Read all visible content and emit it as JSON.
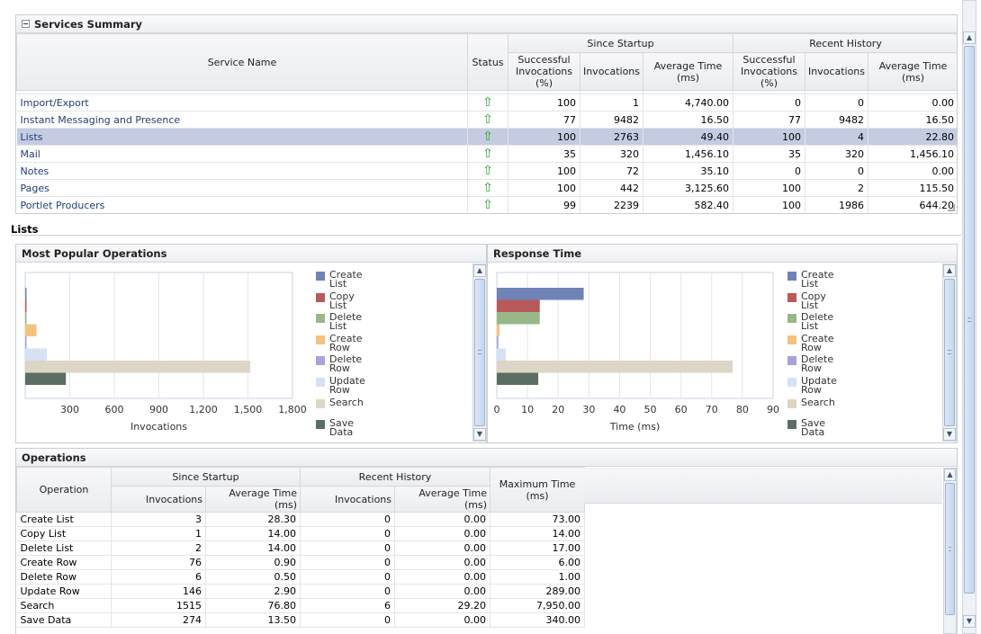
{
  "services": {
    "title": "Services Summary",
    "headers": {
      "service_name": "Service Name",
      "status": "Status",
      "since_startup": "Since Startup",
      "recent_history": "Recent History",
      "successful": "Successful Invocations (%)",
      "invocations": "Invocations",
      "avg_time": "Average Time (ms)"
    },
    "rows": [
      {
        "name": "Import/Export",
        "s_succ": "100",
        "s_inv": "1",
        "s_avg": "4,740.00",
        "r_succ": "0",
        "r_inv": "0",
        "r_avg": "0.00"
      },
      {
        "name": "Instant Messaging and Presence",
        "s_succ": "77",
        "s_inv": "9482",
        "s_avg": "16.50",
        "r_succ": "77",
        "r_inv": "9482",
        "r_avg": "16.50"
      },
      {
        "name": "Lists",
        "s_succ": "100",
        "s_inv": "2763",
        "s_avg": "49.40",
        "r_succ": "100",
        "r_inv": "4",
        "r_avg": "22.80"
      },
      {
        "name": "Mail",
        "s_succ": "35",
        "s_inv": "320",
        "s_avg": "1,456.10",
        "r_succ": "35",
        "r_inv": "320",
        "r_avg": "1,456.10"
      },
      {
        "name": "Notes",
        "s_succ": "100",
        "s_inv": "72",
        "s_avg": "35.10",
        "r_succ": "0",
        "r_inv": "0",
        "r_avg": "0.00"
      },
      {
        "name": "Pages",
        "s_succ": "100",
        "s_inv": "442",
        "s_avg": "3,125.60",
        "r_succ": "100",
        "r_inv": "2",
        "r_avg": "115.50"
      },
      {
        "name": "Portlet Producers",
        "s_succ": "99",
        "s_inv": "2239",
        "s_avg": "582.40",
        "r_succ": "100",
        "r_inv": "1986",
        "r_avg": "644.20"
      }
    ],
    "selected": "Lists",
    "status_icon": "up-arrow-icon",
    "status_color": "#2c9a2c"
  },
  "lists": {
    "title": "Lists",
    "popular": {
      "title": "Most Popular Operations"
    },
    "response": {
      "title": "Response Time"
    }
  },
  "chart_data": [
    {
      "type": "bar",
      "orientation": "horizontal",
      "categories": [
        "Create List",
        "Copy List",
        "Delete List",
        "Create Row",
        "Delete Row",
        "Update Row",
        "Search",
        "Save Data"
      ],
      "values": [
        3,
        1,
        2,
        76,
        6,
        146,
        1515,
        274
      ],
      "colors": [
        "#6f83b6",
        "#b85a5a",
        "#98b88a",
        "#f3c27e",
        "#a9a3d9",
        "#d6e1f4",
        "#ddd5c6",
        "#5c6e64"
      ],
      "xlabel": "Invocations",
      "xticks": [
        "300",
        "600",
        "900",
        "1,200",
        "1,500",
        "1,800"
      ],
      "xlim": [
        0,
        1800
      ],
      "grid": true,
      "legend": "right"
    },
    {
      "type": "bar",
      "orientation": "horizontal",
      "categories": [
        "Create List",
        "Copy List",
        "Delete List",
        "Create Row",
        "Delete Row",
        "Update Row",
        "Search",
        "Save Data"
      ],
      "values": [
        28.3,
        14.0,
        14.0,
        0.9,
        0.5,
        2.9,
        76.8,
        13.5
      ],
      "colors": [
        "#6f83b6",
        "#b85a5a",
        "#98b88a",
        "#f3c27e",
        "#a9a3d9",
        "#d6e1f4",
        "#ddd5c6",
        "#5c6e64"
      ],
      "xlabel": "Time (ms)",
      "xticks": [
        "0",
        "10",
        "20",
        "30",
        "40",
        "50",
        "60",
        "70",
        "80",
        "90"
      ],
      "xlim": [
        0,
        90
      ],
      "grid": true,
      "legend": "right"
    }
  ],
  "legend": [
    [
      "Create",
      "List"
    ],
    [
      "Copy",
      "List"
    ],
    [
      "Delete",
      "List"
    ],
    [
      "Create",
      "Row"
    ],
    [
      "Delete",
      "Row"
    ],
    [
      "Update",
      "Row"
    ],
    [
      "Search",
      ""
    ],
    [
      "Save",
      "Data"
    ]
  ],
  "operations": {
    "title": "Operations",
    "headers": {
      "operation": "Operation",
      "since_startup": "Since Startup",
      "recent_history": "Recent History",
      "invocations": "Invocations",
      "avg_time": "Average Time (ms)",
      "max_time": "Maximum Time (ms)"
    },
    "rows": [
      {
        "op": "Create List",
        "s_inv": "3",
        "s_avg": "28.30",
        "r_inv": "0",
        "r_avg": "0.00",
        "max": "73.00"
      },
      {
        "op": "Copy List",
        "s_inv": "1",
        "s_avg": "14.00",
        "r_inv": "0",
        "r_avg": "0.00",
        "max": "14.00"
      },
      {
        "op": "Delete List",
        "s_inv": "2",
        "s_avg": "14.00",
        "r_inv": "0",
        "r_avg": "0.00",
        "max": "17.00"
      },
      {
        "op": "Create Row",
        "s_inv": "76",
        "s_avg": "0.90",
        "r_inv": "0",
        "r_avg": "0.00",
        "max": "6.00"
      },
      {
        "op": "Delete Row",
        "s_inv": "6",
        "s_avg": "0.50",
        "r_inv": "0",
        "r_avg": "0.00",
        "max": "1.00"
      },
      {
        "op": "Update Row",
        "s_inv": "146",
        "s_avg": "2.90",
        "r_inv": "0",
        "r_avg": "0.00",
        "max": "289.00"
      },
      {
        "op": "Search",
        "s_inv": "1515",
        "s_avg": "76.80",
        "r_inv": "6",
        "r_avg": "29.20",
        "max": "7,950.00"
      },
      {
        "op": "Save Data",
        "s_inv": "274",
        "s_avg": "13.50",
        "r_inv": "0",
        "r_avg": "0.00",
        "max": "340.00"
      }
    ]
  }
}
